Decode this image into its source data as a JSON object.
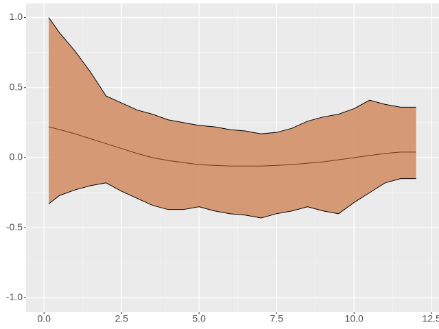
{
  "chart_data": {
    "type": "ribbon",
    "x": [
      0.15,
      0.5,
      1,
      1.5,
      2,
      2.5,
      3,
      3.5,
      4,
      4.5,
      5,
      5.5,
      6,
      6.5,
      7,
      7.5,
      8,
      8.5,
      9,
      9.5,
      10,
      10.5,
      11,
      11.5,
      12
    ],
    "upper": [
      1.0,
      0.89,
      0.76,
      0.61,
      0.44,
      0.39,
      0.34,
      0.31,
      0.27,
      0.25,
      0.23,
      0.22,
      0.2,
      0.19,
      0.17,
      0.18,
      0.21,
      0.26,
      0.29,
      0.31,
      0.35,
      0.41,
      0.38,
      0.36,
      0.36
    ],
    "lower": [
      -0.33,
      -0.27,
      -0.23,
      -0.2,
      -0.18,
      -0.24,
      -0.29,
      -0.34,
      -0.37,
      -0.37,
      -0.35,
      -0.38,
      -0.4,
      -0.41,
      -0.43,
      -0.4,
      -0.38,
      -0.35,
      -0.38,
      -0.4,
      -0.32,
      -0.25,
      -0.18,
      -0.15,
      -0.15
    ],
    "mean": [
      0.22,
      0.2,
      0.17,
      0.135,
      0.1,
      0.065,
      0.03,
      0.0,
      -0.02,
      -0.035,
      -0.05,
      -0.055,
      -0.06,
      -0.06,
      -0.06,
      -0.055,
      -0.05,
      -0.04,
      -0.03,
      -0.015,
      0.0,
      0.015,
      0.03,
      0.04,
      0.04
    ],
    "fill_color": "#d4956f",
    "edge_color": "#000000",
    "mean_color": "#7a3510",
    "xlim": [
      -0.58,
      12.74
    ],
    "ylim": [
      -1.1,
      1.1
    ],
    "xticks": [
      {
        "value": 0,
        "label": "0.0"
      },
      2.5,
      {
        "value": 5,
        "label": "5.0"
      },
      7.5,
      {
        "value": 10,
        "label": "10.0"
      },
      12.5
    ],
    "yticks": [
      {
        "value": -1,
        "label": "-1.0"
      },
      -0.5,
      {
        "value": 0,
        "label": "0.0"
      },
      0.5,
      {
        "value": 1,
        "label": "1.0"
      }
    ],
    "minor_xticks": [
      1.25,
      3.75,
      6.25,
      8.75,
      11.25
    ],
    "minor_yticks": [
      -0.75,
      -0.25,
      0.25,
      0.75
    ],
    "grid": true
  }
}
